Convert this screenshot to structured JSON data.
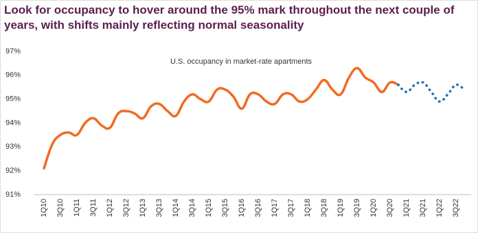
{
  "chart_data": {
    "type": "line",
    "title": "Look for occupancy to hover around the 95% mark throughout the next couple of years, with shifts mainly reflecting normal seasonality",
    "annotation": "U.S. occupancy in market-rate apartments",
    "categories": [
      "1Q10",
      null,
      "3Q10",
      null,
      "1Q11",
      null,
      "3Q11",
      null,
      "1Q12",
      null,
      "3Q12",
      null,
      "1Q13",
      null,
      "3Q13",
      null,
      "1Q14",
      null,
      "3Q14",
      null,
      "1Q15",
      null,
      "3Q15",
      null,
      "1Q16",
      null,
      "3Q16",
      null,
      "1Q17",
      null,
      "3Q17",
      null,
      "1Q18",
      null,
      "3Q18",
      null,
      "1Q19",
      null,
      "3Q19",
      null,
      "1Q20",
      null,
      "3Q20",
      null,
      "1Q21",
      null,
      "3Q21",
      null,
      "1Q22",
      null,
      "3Q22",
      null
    ],
    "series": [
      {
        "color": "#f26a21",
        "dash": false,
        "values": [
          92.1,
          93.1,
          93.5,
          93.6,
          93.5,
          94.0,
          94.2,
          93.9,
          93.8,
          94.4,
          94.5,
          94.4,
          94.2,
          94.7,
          94.8,
          94.5,
          94.3,
          94.9,
          95.2,
          95.0,
          94.9,
          95.4,
          95.4,
          95.1,
          94.6,
          95.2,
          95.2,
          94.9,
          94.8,
          95.2,
          95.2,
          94.9,
          95.0,
          95.4,
          95.8,
          95.4,
          95.2,
          95.9,
          96.3,
          95.9,
          95.7,
          95.3,
          95.7,
          95.6,
          null,
          null,
          null,
          null,
          null,
          null,
          null,
          null
        ]
      },
      {
        "color": "#1f6fb5",
        "dash": true,
        "values": [
          null,
          null,
          null,
          null,
          null,
          null,
          null,
          null,
          null,
          null,
          null,
          null,
          null,
          null,
          null,
          null,
          null,
          null,
          null,
          null,
          null,
          null,
          null,
          null,
          null,
          null,
          null,
          null,
          null,
          null,
          null,
          null,
          null,
          null,
          null,
          null,
          null,
          null,
          null,
          null,
          null,
          null,
          null,
          95.6,
          95.3,
          95.6,
          95.7,
          95.3,
          94.9,
          95.2,
          95.6,
          95.4
        ]
      }
    ],
    "ylim": [
      91,
      97
    ],
    "yticks": [
      {
        "value": 91,
        "label": "91%"
      },
      {
        "value": 92,
        "label": "92%"
      },
      {
        "value": 93,
        "label": "93%"
      },
      {
        "value": 94,
        "label": "94%"
      },
      {
        "value": 95,
        "label": "95%"
      },
      {
        "value": 96,
        "label": "96%"
      },
      {
        "value": 97,
        "label": "97%"
      }
    ],
    "grid": false
  }
}
